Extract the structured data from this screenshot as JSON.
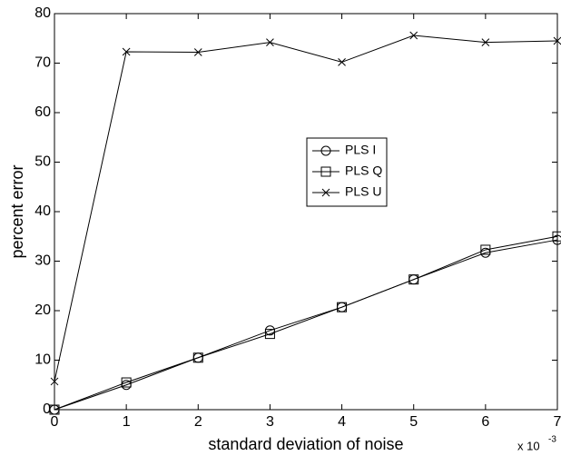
{
  "chart_data": {
    "type": "line",
    "x_label": "standard deviation of noise",
    "y_label": "percent error",
    "x_multiplier": "x 10",
    "x_multiplier_exponent": "-3",
    "x": [
      0,
      1,
      2,
      3,
      4,
      5,
      6,
      7
    ],
    "series": [
      {
        "name": "PLS I",
        "color": "#000000",
        "marker": "circle",
        "values": [
          0,
          5,
          10.5,
          16,
          20.7,
          26.3,
          31.7,
          34.3
        ]
      },
      {
        "name": "PLS Q",
        "color": "#000000",
        "marker": "square",
        "values": [
          0,
          5.5,
          10.5,
          15.3,
          20.7,
          26.3,
          32.3,
          35
        ]
      },
      {
        "name": "PLS U",
        "color": "#000000",
        "marker": "x",
        "values": [
          5.7,
          72.3,
          72.2,
          74.2,
          70.2,
          75.6,
          74.2,
          74.5
        ]
      }
    ],
    "xlim": [
      0,
      7
    ],
    "xticks": [
      0,
      1,
      2,
      3,
      4,
      5,
      6,
      7
    ],
    "ylim": [
      0,
      80
    ],
    "yticks": [
      0,
      10,
      20,
      30,
      40,
      50,
      60,
      70,
      80
    ],
    "grid": false,
    "legend_position": "center-right"
  }
}
